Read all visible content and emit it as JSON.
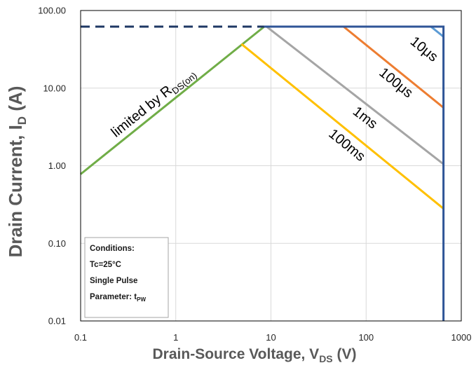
{
  "chart_data": {
    "type": "line",
    "x_scale": "log",
    "y_scale": "log",
    "xlim": [
      0.1,
      1000
    ],
    "ylim": [
      0.01,
      100
    ],
    "grid": true,
    "xlabel": {
      "text": "Drain-Source Voltage, V",
      "sub": "DS",
      "tail": " (V)"
    },
    "ylabel": {
      "text": "Drain Current, I",
      "sub": "D",
      "tail": " (A)"
    },
    "x_ticks": [
      {
        "value": 0.1,
        "label": "0.1"
      },
      {
        "value": 1,
        "label": "1"
      },
      {
        "value": 10,
        "label": "10"
      },
      {
        "value": 100,
        "label": "100"
      },
      {
        "value": 1000,
        "label": "1000"
      }
    ],
    "y_ticks": [
      {
        "value": 0.01,
        "label": "0.01"
      },
      {
        "value": 0.1,
        "label": "0.10"
      },
      {
        "value": 1,
        "label": "1.00"
      },
      {
        "value": 10,
        "label": "10.00"
      },
      {
        "value": 100,
        "label": "100.00"
      }
    ],
    "series": [
      {
        "name": "limited by R",
        "name_sub": "DS(on)",
        "color": "#70AD47",
        "dashed": false,
        "points": [
          [
            0.1,
            0.78
          ],
          [
            8.5,
            62
          ]
        ]
      },
      {
        "color": "#1F3864",
        "dashed": true,
        "points": [
          [
            0.1,
            62
          ],
          [
            8.5,
            62
          ]
        ]
      },
      {
        "name": "100ms",
        "color": "#FFC000",
        "dashed": false,
        "points": [
          [
            4.9,
            37
          ],
          [
            650,
            0.28
          ]
        ]
      },
      {
        "name": "1ms",
        "color": "#A5A5A5",
        "dashed": false,
        "points": [
          [
            9,
            62
          ],
          [
            650,
            1.05
          ]
        ]
      },
      {
        "name": "100μs",
        "color": "#ED7D31",
        "dashed": false,
        "points": [
          [
            58,
            62
          ],
          [
            650,
            5.6
          ]
        ]
      },
      {
        "name": "10μs",
        "color": "#5B9BD5",
        "dashed": false,
        "points": [
          [
            480,
            62
          ],
          [
            650,
            46
          ]
        ]
      },
      {
        "color": "#2F5597",
        "dashed": false,
        "points": [
          [
            8.5,
            62
          ],
          [
            650,
            62
          ],
          [
            650,
            0.01
          ]
        ]
      }
    ],
    "conditions": {
      "heading": "Conditions:",
      "temperature": "Tc=25°C",
      "pulse": "Single Pulse",
      "parameter": "Parameter: t",
      "parameter_sub": "PW"
    }
  }
}
